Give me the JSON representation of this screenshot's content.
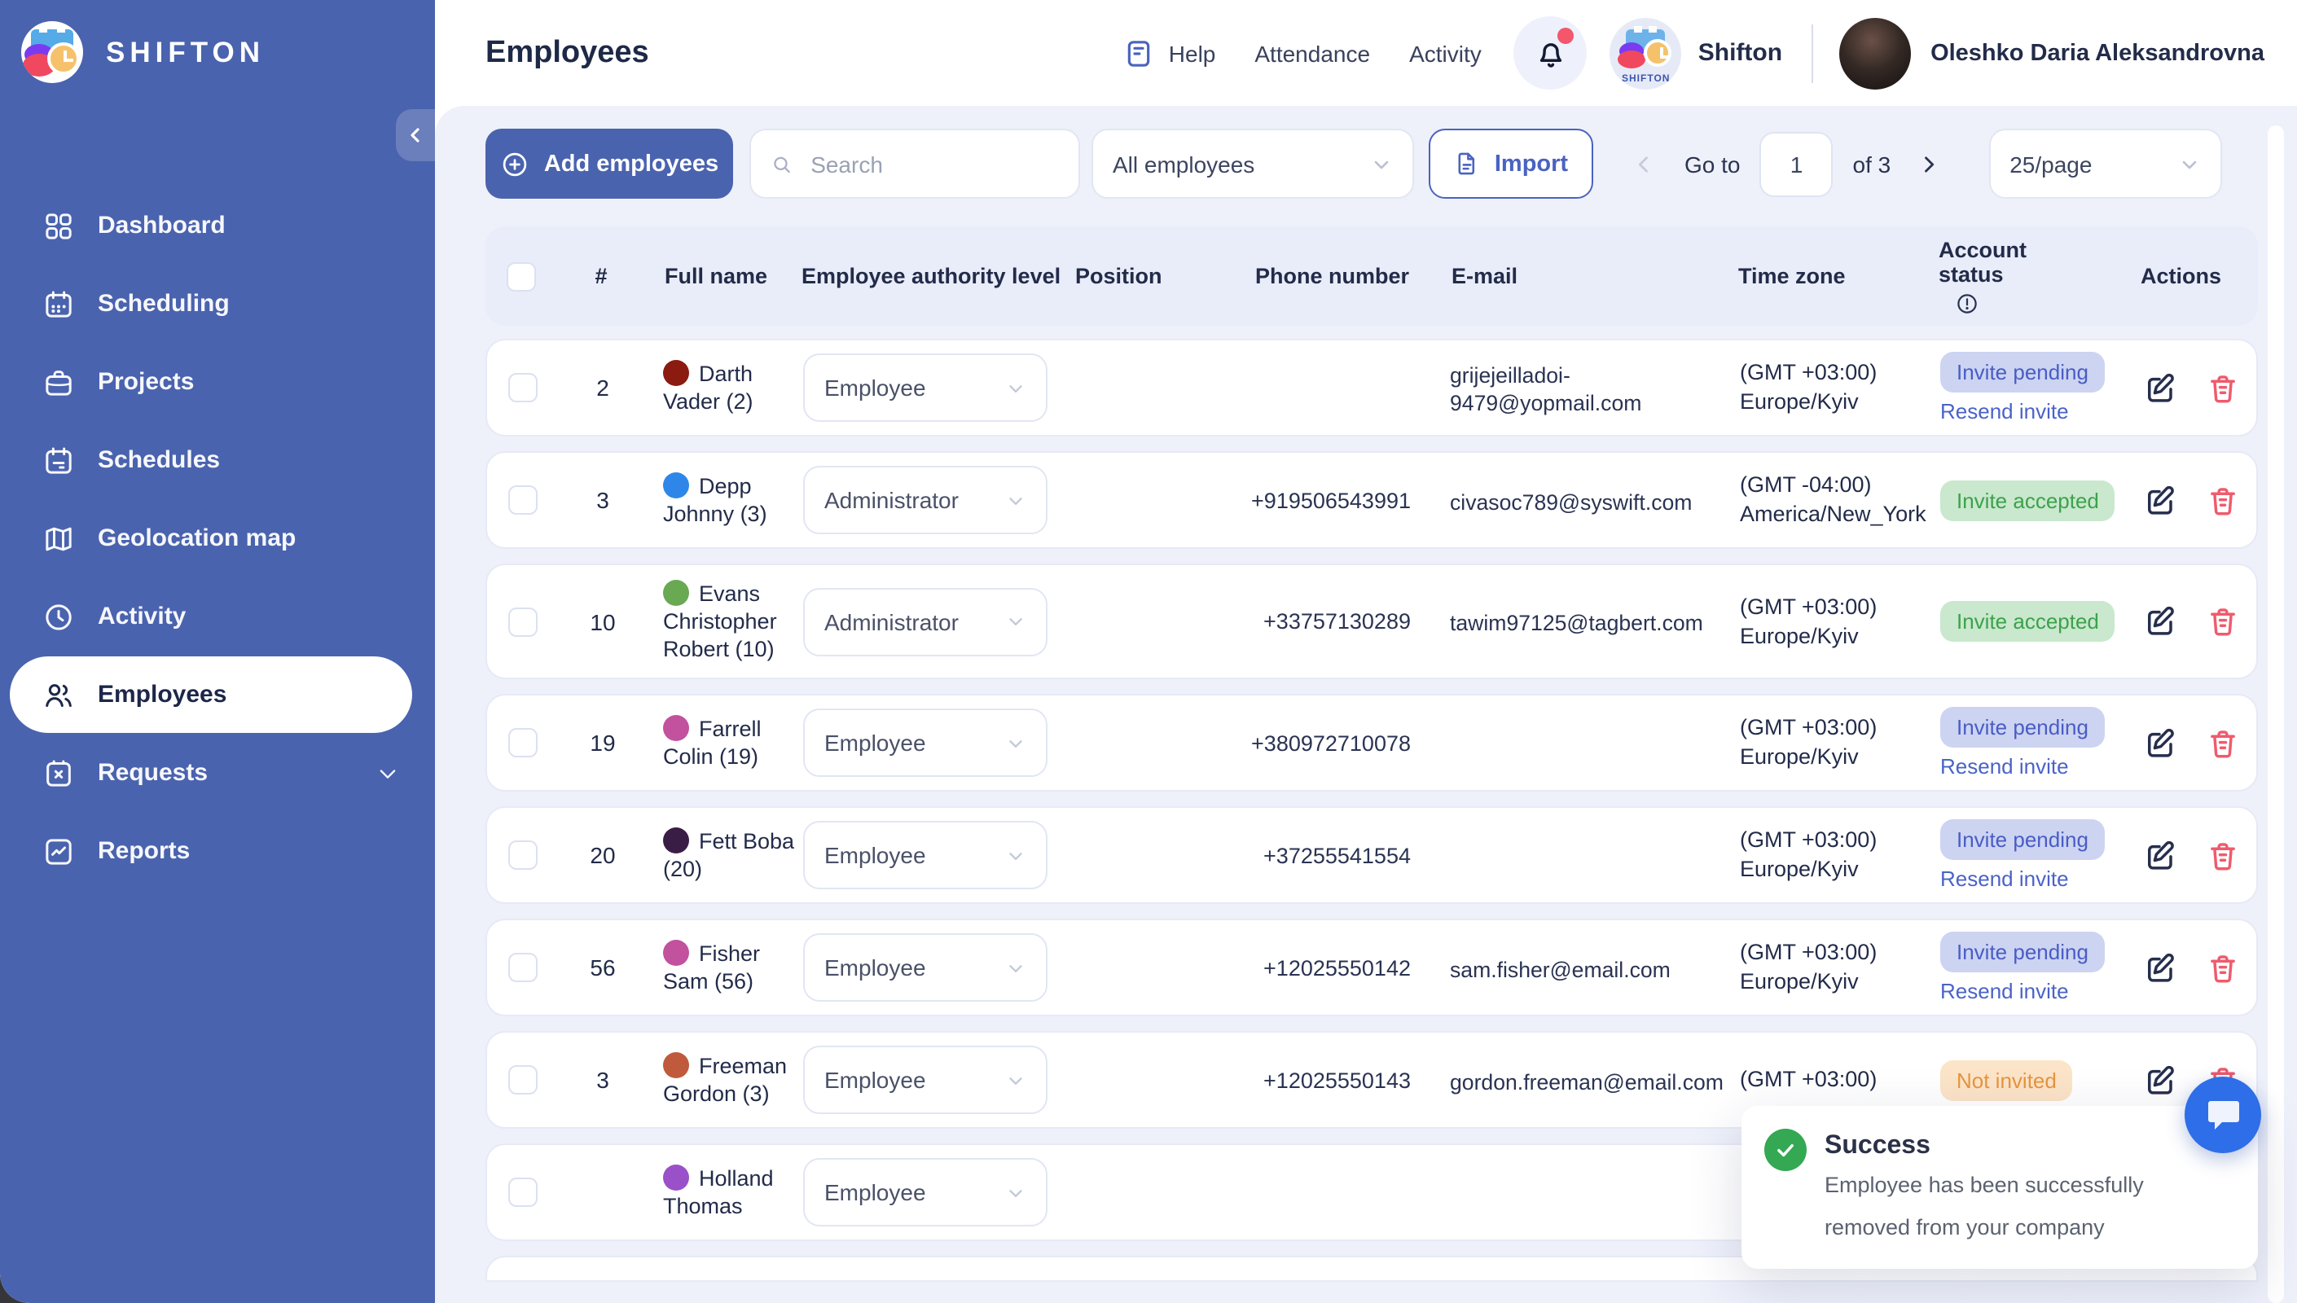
{
  "colors": {
    "sidebar_blue": "#4a63ae",
    "accent_blue": "#4a63c8",
    "pending_bg": "#ccd4f1",
    "pending_text": "#4a5cc5",
    "accepted_bg": "#c9e8cd",
    "accepted_text": "#3da14c",
    "not_invited_bg": "#fce4c8",
    "not_invited_text": "#e6953f",
    "danger_red": "#ef5b6d",
    "success_green": "#34a853",
    "notification_dot": "#f4566b"
  },
  "sidebar": {
    "brand": "SHIFTON",
    "items": [
      {
        "label": "Dashboard",
        "icon": "dashboard-icon",
        "active": false
      },
      {
        "label": "Scheduling",
        "icon": "scheduling-icon",
        "active": false
      },
      {
        "label": "Projects",
        "icon": "projects-icon",
        "active": false
      },
      {
        "label": "Schedules",
        "icon": "schedules-icon",
        "active": false
      },
      {
        "label": "Geolocation map",
        "icon": "geolocation-map-icon",
        "active": false
      },
      {
        "label": "Activity",
        "icon": "activity-icon",
        "active": false
      },
      {
        "label": "Employees",
        "icon": "employees-icon",
        "active": true
      },
      {
        "label": "Requests",
        "icon": "requests-icon",
        "active": false,
        "has_chevron": true
      },
      {
        "label": "Reports",
        "icon": "reports-icon",
        "active": false
      }
    ]
  },
  "header": {
    "title": "Employees",
    "nav": {
      "help": "Help",
      "attendance": "Attendance",
      "activity": "Activity"
    },
    "notifications_unread": true,
    "company_name": "Shifton",
    "company_logo_text": "SHIFTON",
    "user_name": "Oleshko Daria Aleksandrovna"
  },
  "toolbar": {
    "add_label": "Add employees",
    "search_placeholder": "Search",
    "filter_value": "All employees",
    "import_label": "Import",
    "goto_label": "Go to",
    "page_value": "1",
    "of_label": "of 3",
    "per_page_value": "25/page"
  },
  "table": {
    "columns": [
      "#",
      "Full name",
      "Employee authority level",
      "Position",
      "Phone number",
      "E-mail",
      "Time zone",
      "Account status",
      "Actions"
    ],
    "rows": [
      {
        "num": "2",
        "name": "Darth Vader (2)",
        "avatar_color": "#8b1a10",
        "level": "Employee",
        "position": "",
        "phone": "",
        "email": "grijejeilladoi-9479@yopmail.com",
        "tz_offset": "(GMT +03:00)",
        "tz_region": "Europe/Kyiv",
        "status": "Invite pending",
        "status_type": "pending",
        "resend": "Resend invite"
      },
      {
        "num": "3",
        "name": "Depp Johnny (3)",
        "avatar_color": "#2e87e8",
        "level": "Administrator",
        "position": "",
        "phone": "+919506543991",
        "email": "civasoc789@syswift.com",
        "tz_offset": "(GMT -04:00)",
        "tz_region": "America/New_York",
        "status": "Invite accepted",
        "status_type": "accepted",
        "resend": ""
      },
      {
        "num": "10",
        "name": "Evans Christopher Robert (10)",
        "avatar_color": "#69a952",
        "level": "Administrator",
        "position": "",
        "phone": "+33757130289",
        "email": "tawim97125@tagbert.com",
        "tz_offset": "(GMT +03:00)",
        "tz_region": "Europe/Kyiv",
        "status": "Invite accepted",
        "status_type": "accepted",
        "resend": ""
      },
      {
        "num": "19",
        "name": "Farrell Colin (19)",
        "avatar_color": "#c2519e",
        "level": "Employee",
        "position": "",
        "phone": "+380972710078",
        "email": "",
        "tz_offset": "(GMT +03:00)",
        "tz_region": "Europe/Kyiv",
        "status": "Invite pending",
        "status_type": "pending",
        "resend": "Resend invite"
      },
      {
        "num": "20",
        "name": "Fett Boba (20)",
        "avatar_color": "#3a1d44",
        "level": "Employee",
        "position": "",
        "phone": "+37255541554",
        "email": "",
        "tz_offset": "(GMT +03:00)",
        "tz_region": "Europe/Kyiv",
        "status": "Invite pending",
        "status_type": "pending",
        "resend": "Resend invite"
      },
      {
        "num": "56",
        "name": "Fisher Sam (56)",
        "avatar_color": "#c2519e",
        "level": "Employee",
        "position": "",
        "phone": "+12025550142",
        "email": "sam.fisher@email.com",
        "tz_offset": "(GMT +03:00)",
        "tz_region": "Europe/Kyiv",
        "status": "Invite pending",
        "status_type": "pending",
        "resend": "Resend invite"
      },
      {
        "num": "3",
        "name": "Freeman Gordon (3)",
        "avatar_color": "#c05a3c",
        "level": "Employee",
        "position": "",
        "phone": "+12025550143",
        "email": "gordon.freeman@email.com",
        "tz_offset": "(GMT +03:00)",
        "tz_region": "",
        "status": "Not invited",
        "status_type": "notinvited",
        "resend": ""
      },
      {
        "num": "",
        "name": "Holland Thomas",
        "avatar_color": "#9a50c8",
        "level": "Employee",
        "position": "",
        "phone": "",
        "email": "",
        "tz_offset": "",
        "tz_region": "",
        "status": "",
        "status_type": "",
        "resend": ""
      }
    ]
  },
  "toast": {
    "title": "Success",
    "message": "Employee has been successfully removed from your company"
  }
}
